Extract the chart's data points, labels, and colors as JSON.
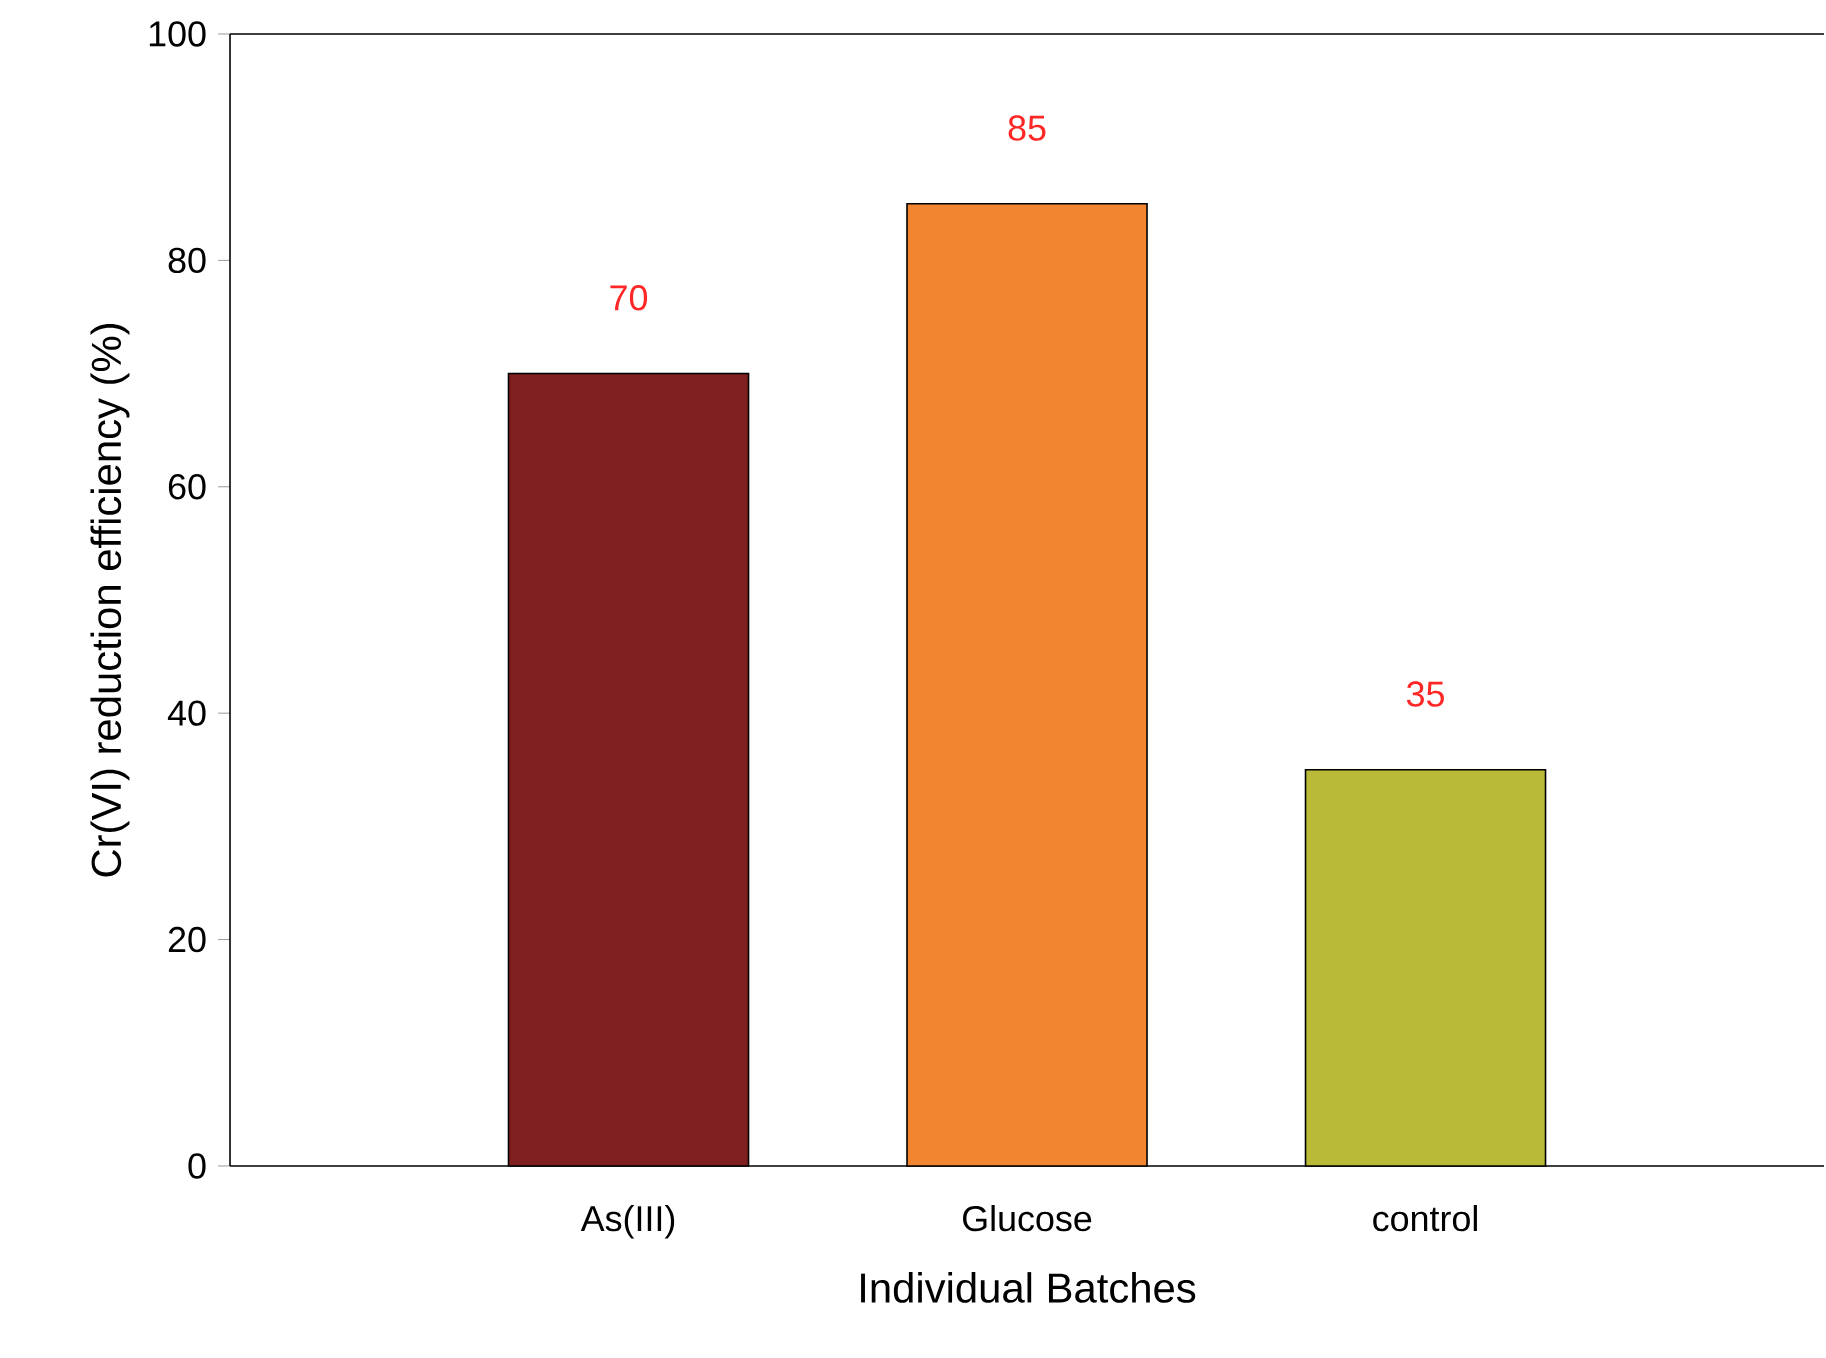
{
  "chart_data": {
    "type": "bar",
    "xlabel": "Individual Batches",
    "ylabel": "Cr(VI) reduction efficiency (%)",
    "categories": [
      "As(III)",
      "Glucose",
      "control"
    ],
    "values": [
      70,
      85,
      35
    ],
    "colors": [
      "#7f1f1f",
      "#f28530",
      "#b9bb38"
    ],
    "ylim": [
      0,
      100
    ],
    "yticks": [
      0,
      20,
      40,
      60,
      80,
      100
    ],
    "data_labels": true
  }
}
